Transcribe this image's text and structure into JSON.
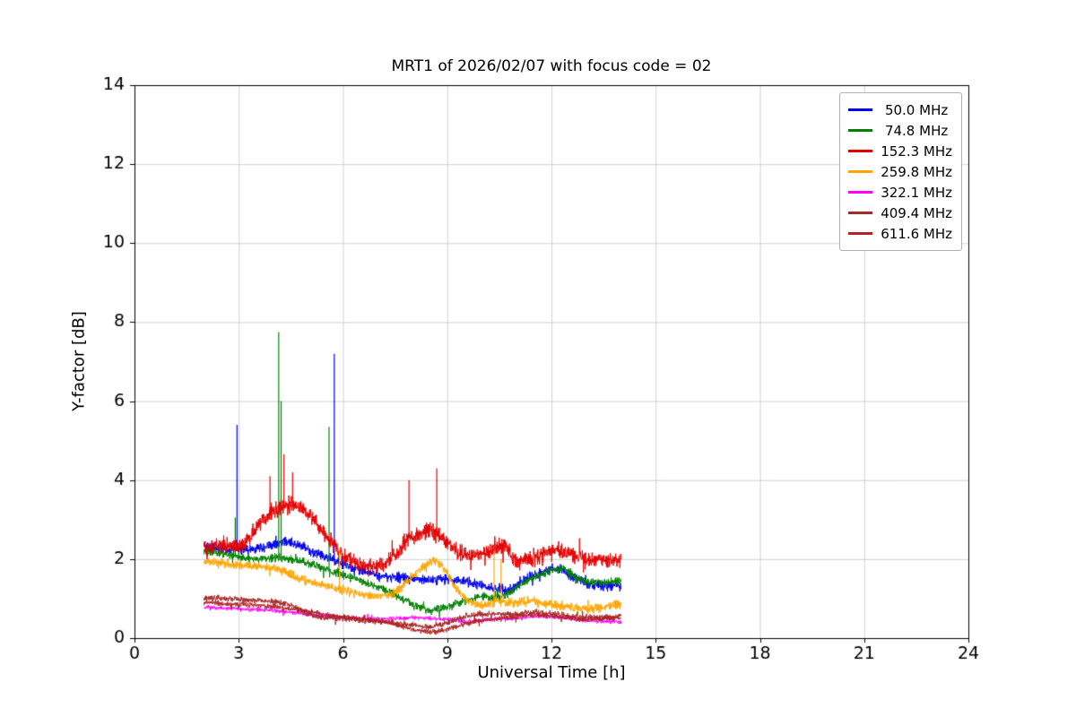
{
  "chart_data": {
    "type": "line",
    "title": "MRT1 of 2026/02/07 with focus code = 02",
    "xlabel": "Universal Time [h]",
    "ylabel": "Y-factor [dB]",
    "xlim": [
      0,
      24
    ],
    "ylim": [
      0,
      14
    ],
    "xticks": [
      0,
      3,
      6,
      9,
      12,
      15,
      18,
      21,
      24
    ],
    "yticks": [
      0,
      2,
      4,
      6,
      8,
      10,
      12,
      14
    ],
    "grid": true,
    "grid_color": "#c6c6c6",
    "spine_color": "#000000",
    "legend_position": "upper right",
    "data_x_range": [
      2.0,
      14.0
    ],
    "series": [
      {
        "name": " 50.0 MHz",
        "color": "#0000ee",
        "noise": 0.12,
        "anchors": [
          [
            2,
            2.3
          ],
          [
            2.5,
            2.28
          ],
          [
            3,
            2.22
          ],
          [
            3.5,
            2.25
          ],
          [
            4,
            2.35
          ],
          [
            4.3,
            2.45
          ],
          [
            4.6,
            2.4
          ],
          [
            5,
            2.25
          ],
          [
            5.5,
            2.05
          ],
          [
            6,
            1.88
          ],
          [
            6.5,
            1.72
          ],
          [
            7,
            1.58
          ],
          [
            7.5,
            1.55
          ],
          [
            8,
            1.5
          ],
          [
            8.5,
            1.48
          ],
          [
            9,
            1.5
          ],
          [
            9.5,
            1.42
          ],
          [
            10,
            1.32
          ],
          [
            10.5,
            1.25
          ],
          [
            10.8,
            1.22
          ],
          [
            11,
            1.35
          ],
          [
            11.4,
            1.55
          ],
          [
            11.8,
            1.7
          ],
          [
            12,
            1.78
          ],
          [
            12.3,
            1.75
          ],
          [
            12.6,
            1.55
          ],
          [
            13,
            1.38
          ],
          [
            13.5,
            1.3
          ],
          [
            14,
            1.35
          ]
        ],
        "spikes": [
          [
            2.95,
            5.4
          ],
          [
            5.75,
            7.2
          ]
        ]
      },
      {
        "name": " 74.8 MHz",
        "color": "#008000",
        "noise": 0.1,
        "anchors": [
          [
            2,
            2.2
          ],
          [
            2.5,
            2.15
          ],
          [
            3,
            2.05
          ],
          [
            3.5,
            2.0
          ],
          [
            4,
            2.05
          ],
          [
            4.5,
            2.0
          ],
          [
            5,
            1.9
          ],
          [
            5.5,
            1.75
          ],
          [
            6,
            1.6
          ],
          [
            6.5,
            1.45
          ],
          [
            7,
            1.3
          ],
          [
            7.5,
            1.1
          ],
          [
            8,
            0.85
          ],
          [
            8.5,
            0.7
          ],
          [
            9,
            0.8
          ],
          [
            9.5,
            0.95
          ],
          [
            10,
            1.05
          ],
          [
            10.4,
            1.0
          ],
          [
            10.8,
            1.15
          ],
          [
            11,
            1.3
          ],
          [
            11.5,
            1.55
          ],
          [
            12,
            1.7
          ],
          [
            12.3,
            1.75
          ],
          [
            12.7,
            1.55
          ],
          [
            13,
            1.45
          ],
          [
            13.5,
            1.4
          ],
          [
            14,
            1.45
          ]
        ],
        "spikes": [
          [
            2.9,
            3.05
          ],
          [
            4.15,
            7.75
          ],
          [
            4.22,
            6.0
          ],
          [
            5.6,
            5.35
          ]
        ]
      },
      {
        "name": "152.3 MHz",
        "color": "#e50000",
        "noise": 0.2,
        "anchors": [
          [
            2,
            2.3
          ],
          [
            2.5,
            2.35
          ],
          [
            3,
            2.3
          ],
          [
            3.3,
            2.5
          ],
          [
            3.6,
            2.9
          ],
          [
            4,
            3.2
          ],
          [
            4.3,
            3.35
          ],
          [
            4.6,
            3.4
          ],
          [
            4.9,
            3.2
          ],
          [
            5.2,
            2.95
          ],
          [
            5.5,
            2.6
          ],
          [
            6,
            2.1
          ],
          [
            6.4,
            1.9
          ],
          [
            6.8,
            1.8
          ],
          [
            7.2,
            1.85
          ],
          [
            7.6,
            2.2
          ],
          [
            7.9,
            2.55
          ],
          [
            8.2,
            2.6
          ],
          [
            8.5,
            2.7
          ],
          [
            8.8,
            2.6
          ],
          [
            9,
            2.4
          ],
          [
            9.4,
            2.15
          ],
          [
            9.8,
            2.1
          ],
          [
            10.2,
            2.15
          ],
          [
            10.5,
            2.35
          ],
          [
            10.8,
            2.2
          ],
          [
            11,
            1.95
          ],
          [
            11.4,
            2.0
          ],
          [
            11.8,
            2.15
          ],
          [
            12.2,
            2.25
          ],
          [
            12.6,
            2.1
          ],
          [
            13,
            1.95
          ],
          [
            13.4,
            2.0
          ],
          [
            13.8,
            2.0
          ],
          [
            14,
            1.95
          ]
        ],
        "spikes": [
          [
            3.9,
            4.1
          ],
          [
            4.3,
            4.65
          ],
          [
            4.55,
            4.2
          ],
          [
            7.9,
            4.0
          ],
          [
            8.7,
            4.3
          ]
        ]
      },
      {
        "name": "259.8 MHz",
        "color": "#ffa500",
        "noise": 0.11,
        "anchors": [
          [
            2,
            1.95
          ],
          [
            2.5,
            1.9
          ],
          [
            3,
            1.85
          ],
          [
            3.5,
            1.82
          ],
          [
            4,
            1.78
          ],
          [
            4.3,
            1.7
          ],
          [
            4.6,
            1.55
          ],
          [
            5,
            1.45
          ],
          [
            5.4,
            1.35
          ],
          [
            5.8,
            1.25
          ],
          [
            6,
            1.2
          ],
          [
            6.5,
            1.1
          ],
          [
            7,
            1.05
          ],
          [
            7.4,
            1.1
          ],
          [
            7.7,
            1.3
          ],
          [
            8,
            1.55
          ],
          [
            8.3,
            1.8
          ],
          [
            8.6,
            1.95
          ],
          [
            8.8,
            1.9
          ],
          [
            9,
            1.65
          ],
          [
            9.2,
            1.35
          ],
          [
            9.5,
            1.0
          ],
          [
            9.8,
            0.85
          ],
          [
            10,
            0.8
          ],
          [
            10.4,
            0.95
          ],
          [
            10.7,
            0.9
          ],
          [
            11,
            0.9
          ],
          [
            11.5,
            0.92
          ],
          [
            12,
            0.85
          ],
          [
            12.5,
            0.8
          ],
          [
            13,
            0.72
          ],
          [
            13.5,
            0.78
          ],
          [
            14,
            0.85
          ]
        ],
        "spikes": [
          [
            5.9,
            2.25
          ],
          [
            10.35,
            2.2
          ],
          [
            10.55,
            2.0
          ]
        ]
      },
      {
        "name": "322.1 MHz",
        "color": "#ff00ff",
        "noise": 0.05,
        "anchors": [
          [
            2,
            0.78
          ],
          [
            3,
            0.74
          ],
          [
            4,
            0.7
          ],
          [
            4.5,
            0.65
          ],
          [
            5,
            0.6
          ],
          [
            5.5,
            0.55
          ],
          [
            6,
            0.52
          ],
          [
            6.5,
            0.5
          ],
          [
            7,
            0.48
          ],
          [
            7.5,
            0.5
          ],
          [
            8,
            0.52
          ],
          [
            8.5,
            0.5
          ],
          [
            9,
            0.48
          ],
          [
            9.5,
            0.42
          ],
          [
            10,
            0.45
          ],
          [
            10.5,
            0.5
          ],
          [
            11,
            0.5
          ],
          [
            11.5,
            0.55
          ],
          [
            12,
            0.55
          ],
          [
            12.5,
            0.5
          ],
          [
            13,
            0.45
          ],
          [
            13.5,
            0.42
          ],
          [
            14,
            0.42
          ]
        ],
        "spikes": []
      },
      {
        "name": "409.4 MHz",
        "color": "#a52a2a",
        "noise": 0.07,
        "anchors": [
          [
            2,
            1.02
          ],
          [
            2.5,
            1.0
          ],
          [
            3,
            0.98
          ],
          [
            3.5,
            0.96
          ],
          [
            4,
            0.92
          ],
          [
            4.3,
            0.88
          ],
          [
            4.6,
            0.8
          ],
          [
            4.9,
            0.65
          ],
          [
            5.2,
            0.55
          ],
          [
            5.5,
            0.52
          ],
          [
            6,
            0.5
          ],
          [
            6.5,
            0.45
          ],
          [
            7,
            0.42
          ],
          [
            7.5,
            0.38
          ],
          [
            8,
            0.32
          ],
          [
            8.5,
            0.28
          ],
          [
            9,
            0.38
          ],
          [
            9.5,
            0.55
          ],
          [
            10,
            0.62
          ],
          [
            10.5,
            0.6
          ],
          [
            11,
            0.62
          ],
          [
            11.5,
            0.66
          ],
          [
            12,
            0.62
          ],
          [
            12.5,
            0.56
          ],
          [
            13,
            0.52
          ],
          [
            13.5,
            0.52
          ],
          [
            14,
            0.56
          ]
        ],
        "spikes": []
      },
      {
        "name": "611.6 MHz",
        "color": "#b22222",
        "noise": 0.06,
        "anchors": [
          [
            2,
            0.9
          ],
          [
            2.5,
            0.88
          ],
          [
            3,
            0.86
          ],
          [
            3.5,
            0.84
          ],
          [
            4,
            0.8
          ],
          [
            4.5,
            0.75
          ],
          [
            5,
            0.68
          ],
          [
            5.5,
            0.6
          ],
          [
            6,
            0.55
          ],
          [
            6.5,
            0.5
          ],
          [
            7,
            0.44
          ],
          [
            7.5,
            0.34
          ],
          [
            8,
            0.22
          ],
          [
            8.5,
            0.15
          ],
          [
            9,
            0.22
          ],
          [
            9.5,
            0.35
          ],
          [
            10,
            0.45
          ],
          [
            10.5,
            0.5
          ],
          [
            11,
            0.55
          ],
          [
            11.5,
            0.6
          ],
          [
            12,
            0.56
          ],
          [
            12.5,
            0.5
          ],
          [
            13,
            0.46
          ],
          [
            13.5,
            0.5
          ],
          [
            14,
            0.52
          ]
        ],
        "spikes": []
      }
    ]
  }
}
